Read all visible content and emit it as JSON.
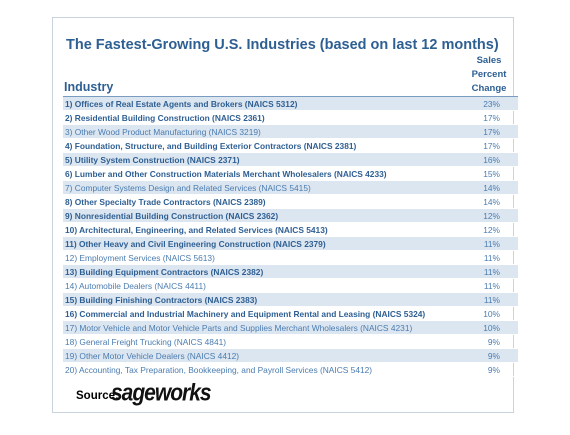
{
  "title": "The Fastest-Growing U.S. Industries (based on last 12 months)",
  "columns": {
    "industry": "Industry",
    "change_lines": [
      "Sales",
      "Percent",
      "Change"
    ]
  },
  "rows": [
    {
      "name": "1) Offices of Real Estate Agents and Brokers (NAICS 5312)",
      "value": "23%",
      "bold": true
    },
    {
      "name": "2) Residential Building Construction (NAICS 2361)",
      "value": "17%",
      "bold": true
    },
    {
      "name": "3) Other Wood Product Manufacturing (NAICS 3219)",
      "value": "17%",
      "bold": false
    },
    {
      "name": "4) Foundation, Structure, and Building Exterior Contractors (NAICS 2381)",
      "value": "17%",
      "bold": true
    },
    {
      "name": "5) Utility System Construction (NAICS 2371)",
      "value": "16%",
      "bold": true
    },
    {
      "name": "6) Lumber and Other Construction Materials Merchant Wholesalers (NAICS 4233)",
      "value": "15%",
      "bold": true
    },
    {
      "name": "7) Computer Systems Design and Related Services (NAICS 5415)",
      "value": "14%",
      "bold": false
    },
    {
      "name": "8) Other Specialty Trade Contractors (NAICS 2389)",
      "value": "14%",
      "bold": true
    },
    {
      "name": "9) Nonresidential Building Construction (NAICS 2362)",
      "value": "12%",
      "bold": true
    },
    {
      "name": "10) Architectural, Engineering, and Related Services (NAICS 5413)",
      "value": "12%",
      "bold": true
    },
    {
      "name": "11) Other Heavy and Civil Engineering Construction (NAICS 2379)",
      "value": "11%",
      "bold": true
    },
    {
      "name": "12) Employment Services (NAICS 5613)",
      "value": "11%",
      "bold": false
    },
    {
      "name": "13) Building Equipment Contractors (NAICS 2382)",
      "value": "11%",
      "bold": true
    },
    {
      "name": "14) Automobile Dealers (NAICS 4411)",
      "value": "11%",
      "bold": false
    },
    {
      "name": "15) Building Finishing Contractors (NAICS 2383)",
      "value": "11%",
      "bold": true
    },
    {
      "name": "16) Commercial and Industrial Machinery and Equipment Rental and Leasing (NAICS 5324)",
      "value": "10%",
      "bold": true
    },
    {
      "name": "17) Motor Vehicle and Motor Vehicle Parts and Supplies Merchant Wholesalers (NAICS 4231)",
      "value": "10%",
      "bold": false
    },
    {
      "name": "18) General Freight Trucking (NAICS 4841)",
      "value": "9%",
      "bold": false
    },
    {
      "name": "19) Other Motor Vehicle Dealers (NAICS 4412)",
      "value": "9%",
      "bold": false
    },
    {
      "name": "20) Accounting, Tax Preparation, Bookkeeping, and Payroll Services (NAICS 5412)",
      "value": "9%",
      "bold": false
    }
  ],
  "source": {
    "label": "Source:",
    "logo_text": "sageworks"
  },
  "colors": {
    "title": "#2e5f93",
    "row_text": "#4a7cb0",
    "shade": "#dce6f1"
  }
}
